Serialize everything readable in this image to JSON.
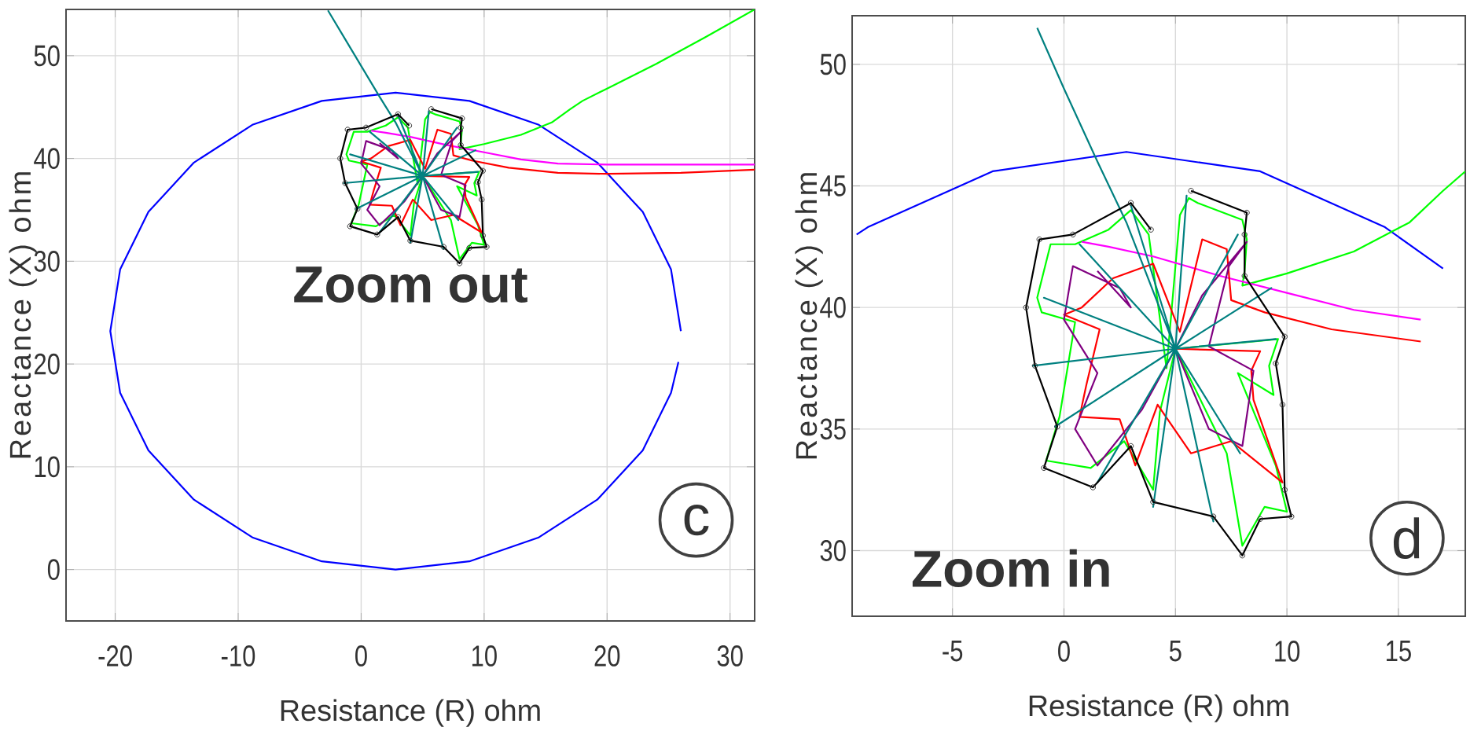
{
  "chart_data": [
    {
      "type": "line",
      "xlabel": "Resistance (R) ohm",
      "ylabel": "Reactance (X) ohm",
      "xlim": [
        -24,
        32
      ],
      "ylim": [
        -5,
        54.5
      ],
      "xticks": [
        -20,
        -10,
        0,
        10,
        20,
        30
      ],
      "yticks": [
        0,
        10,
        20,
        30,
        40,
        50
      ],
      "grid": true,
      "annotations": [
        "Zoom out",
        "c"
      ],
      "series": [
        {
          "color": "#0000ff",
          "x": [
            26.0,
            25.2,
            22.9,
            19.2,
            14.4,
            8.8,
            2.8,
            -3.2,
            -8.8,
            -13.6,
            -17.3,
            -19.6,
            -20.4,
            -19.6,
            -17.3,
            -13.6,
            -8.8,
            -3.2,
            2.8,
            8.8,
            14.4,
            19.2,
            22.9,
            25.2,
            25.8
          ],
          "values": [
            23.2,
            29.2,
            34.8,
            39.6,
            43.3,
            45.6,
            46.4,
            45.6,
            43.3,
            39.6,
            34.8,
            29.2,
            23.2,
            17.2,
            11.6,
            6.8,
            3.1,
            0.8,
            0.0,
            0.8,
            3.1,
            6.8,
            11.6,
            17.2,
            20.2
          ]
        },
        {
          "color": "#00ff00",
          "x": [
            32,
            28,
            24,
            20,
            18,
            17,
            15.5,
            13,
            10,
            8,
            8.1,
            8.2,
            8,
            6,
            5.6,
            5.2,
            4.6,
            3.8,
            3,
            2,
            0.5,
            -0.6,
            -1.2,
            -1,
            0.5,
            -0.2,
            -0.8,
            1.2,
            2.7,
            4,
            4.3,
            5,
            7.3,
            8.0,
            9,
            10,
            9.5,
            7.8,
            9.4,
            9.2,
            9.6,
            8.5,
            5
          ],
          "values": [
            54.5,
            51.8,
            49.2,
            46.8,
            45.6,
            44.8,
            43.5,
            42.3,
            41.4,
            40.9,
            41.5,
            42.8,
            43.6,
            44.3,
            44.5,
            43.8,
            37.5,
            43.0,
            44,
            43.2,
            42.6,
            42.6,
            40.4,
            39.8,
            39.4,
            35.5,
            33.7,
            33.4,
            34.5,
            32.5,
            35.7,
            38.3,
            34.0,
            30.2,
            31.8,
            31.6,
            33.5,
            37.3,
            36.4,
            37.6,
            38.7,
            38.6,
            38.3
          ]
        },
        {
          "color": "#ff00ff",
          "x": [
            32,
            26,
            20,
            16,
            13,
            10,
            7,
            4,
            2,
            0.8
          ],
          "values": [
            39.4,
            39.4,
            39.4,
            39.5,
            39.9,
            40.6,
            41.3,
            42.1,
            42.5,
            42.7
          ]
        },
        {
          "color": "#ff0000",
          "x": [
            32,
            26,
            20,
            16,
            12,
            9,
            7.5,
            7.3,
            6.2,
            5.2,
            4,
            2.2,
            0.8,
            0.0,
            1.6,
            1.0,
            0.7,
            2.5,
            3.2,
            4.2,
            5.7,
            7.5,
            9.8,
            8.5,
            8.4,
            8.8,
            5
          ],
          "values": [
            38.9,
            38.6,
            38.5,
            38.6,
            39.1,
            39.8,
            40.3,
            42.4,
            42.8,
            39,
            41.8,
            41.2,
            40.0,
            39.7,
            39.1,
            36.8,
            35.5,
            35.4,
            33.5,
            36,
            34.0,
            34.5,
            32.8,
            36.2,
            37.4,
            38.2,
            38.3
          ]
        },
        {
          "color": "#800080",
          "x": [
            1.5,
            3,
            2.5,
            0.4,
            0,
            1.5,
            0.5,
            1.5,
            3.5,
            5,
            6.5,
            8,
            8.5,
            6.5,
            7.4,
            8.2,
            6.2,
            5
          ],
          "values": [
            41.5,
            40,
            40.8,
            41.7,
            39.5,
            37.3,
            35,
            33.5,
            35.8,
            38.3,
            35,
            34.3,
            37.4,
            38.4,
            41.7,
            42.7,
            40.5,
            38.3
          ]
        },
        {
          "color": "#008080",
          "x": [
            -2.7,
            -1.5,
            0,
            1.5,
            2.8,
            5,
            -1.4,
            5,
            3,
            5,
            -0.4,
            5,
            1.5,
            5,
            4,
            5,
            6.7,
            5,
            7.9,
            5,
            9.5,
            5,
            9.3,
            5,
            7.8,
            5,
            5.5,
            5,
            0.7,
            5,
            -0.9,
            5
          ],
          "values": [
            54.4,
            52,
            49,
            46,
            43.5,
            38.3,
            37.6,
            38.3,
            44.2,
            38.3,
            35.1,
            38.3,
            32.8,
            38.3,
            31.8,
            38.3,
            31.2,
            38.3,
            34,
            38.3,
            38.7,
            38.3,
            40.8,
            38.3,
            43,
            38.3,
            44.6,
            38.3,
            42.6,
            38.3,
            40.4,
            38.3
          ]
        },
        {
          "color": "#000000",
          "marker": "circle",
          "x": [
            5.7,
            8.2,
            8.1,
            8.1,
            9.9,
            9.5,
            9.8,
            9.9,
            10.2,
            8.8,
            8.0,
            6.7,
            4.0,
            3.0,
            1.3,
            -0.9,
            -0.3,
            -1.3,
            -1.7,
            -1.1,
            0.4,
            3.0,
            3.9
          ],
          "values": [
            44.8,
            43.9,
            43.0,
            41.3,
            38.8,
            37.7,
            36.0,
            32.5,
            31.4,
            31.3,
            29.8,
            31.4,
            32.0,
            34.3,
            32.6,
            33.4,
            35.1,
            37.6,
            40.0,
            42.8,
            43.0,
            44.3,
            43.2
          ]
        }
      ]
    },
    {
      "type": "line",
      "xlabel": "Resistance (R) ohm",
      "ylabel": "Reactance (X) ohm",
      "xlim": [
        -9.5,
        18
      ],
      "ylim": [
        27.3,
        52
      ],
      "xticks": [
        -5,
        0,
        5,
        10,
        15
      ],
      "yticks": [
        30,
        35,
        40,
        45,
        50
      ],
      "grid": true,
      "annotations": [
        "Zoom in",
        "d"
      ],
      "series": [
        {
          "color": "#0000ff",
          "x": [
            17.0,
            14.4,
            8.8,
            2.8,
            -3.2,
            -8.8,
            -9.3
          ],
          "values": [
            41.6,
            43.3,
            45.6,
            46.4,
            45.6,
            43.3,
            43.0
          ]
        },
        {
          "color": "#00ff00",
          "x": [
            18,
            17,
            15.5,
            13,
            10,
            8,
            8.1,
            8.2,
            8,
            6,
            5.6,
            5.2,
            4.6,
            3.8,
            3,
            2,
            0.5,
            -0.6,
            -1.2,
            -1,
            0.5,
            -0.2,
            -0.8,
            1.2,
            2.7,
            4,
            4.3,
            5,
            7.3,
            8.0,
            9,
            10,
            9.5,
            7.8,
            9.4,
            9.2,
            9.6,
            8.5,
            5
          ],
          "values": [
            45.6,
            44.8,
            43.5,
            42.3,
            41.4,
            40.9,
            41.5,
            42.8,
            43.6,
            44.3,
            44.5,
            43.8,
            37.5,
            43.0,
            44,
            43.2,
            42.6,
            42.6,
            40.4,
            39.8,
            39.4,
            35.5,
            33.7,
            33.4,
            34.5,
            32.5,
            35.7,
            38.3,
            34.0,
            30.2,
            31.8,
            31.6,
            33.5,
            37.3,
            36.4,
            37.6,
            38.7,
            38.6,
            38.3
          ]
        },
        {
          "color": "#ff00ff",
          "x": [
            16,
            13,
            10,
            7,
            4,
            2,
            0.8
          ],
          "values": [
            39.5,
            39.9,
            40.6,
            41.3,
            42.1,
            42.5,
            42.7
          ]
        },
        {
          "color": "#ff0000",
          "x": [
            16,
            12,
            9,
            7.5,
            7.3,
            6.2,
            5.2,
            4,
            2.2,
            0.8,
            0.0,
            1.6,
            1.0,
            0.7,
            2.5,
            3.2,
            4.2,
            5.7,
            7.5,
            9.8,
            8.5,
            8.4,
            8.8,
            5
          ],
          "values": [
            38.6,
            39.1,
            39.8,
            40.3,
            42.4,
            42.8,
            39,
            41.8,
            41.2,
            40.0,
            39.7,
            39.1,
            36.8,
            35.5,
            35.4,
            33.5,
            36,
            34.0,
            34.5,
            32.8,
            36.2,
            37.4,
            38.2,
            38.3
          ]
        },
        {
          "color": "#800080",
          "x": [
            1.5,
            3,
            2.5,
            0.4,
            0,
            1.5,
            0.5,
            1.5,
            3.5,
            5,
            6.5,
            8,
            8.5,
            6.5,
            7.4,
            8.2,
            6.2,
            5
          ],
          "values": [
            41.5,
            40,
            40.8,
            41.7,
            39.5,
            37.3,
            35,
            33.5,
            35.8,
            38.3,
            35,
            34.3,
            37.4,
            38.4,
            41.7,
            42.7,
            40.5,
            38.3
          ]
        },
        {
          "color": "#008080",
          "x": [
            -1.2,
            0,
            1.5,
            2.8,
            5,
            -1.4,
            5,
            3,
            5,
            -0.4,
            5,
            1.5,
            5,
            4,
            5,
            6.7,
            5,
            7.9,
            5,
            9.5,
            5,
            9.3,
            5,
            7.8,
            5,
            5.5,
            5,
            0.7,
            5,
            -0.9,
            5
          ],
          "values": [
            51.5,
            49,
            46,
            43.5,
            38.3,
            37.6,
            38.3,
            44.2,
            38.3,
            35.1,
            38.3,
            32.8,
            38.3,
            31.8,
            38.3,
            31.2,
            38.3,
            34,
            38.3,
            38.7,
            38.3,
            40.8,
            38.3,
            43,
            38.3,
            44.6,
            38.3,
            42.6,
            38.3,
            40.4,
            38.3
          ]
        },
        {
          "color": "#000000",
          "marker": "circle",
          "x": [
            5.7,
            8.2,
            8.1,
            8.1,
            9.9,
            9.5,
            9.8,
            9.9,
            10.2,
            8.8,
            8.0,
            6.7,
            4.0,
            3.0,
            1.3,
            -0.9,
            -0.3,
            -1.3,
            -1.7,
            -1.1,
            0.4,
            3.0,
            3.9
          ],
          "values": [
            44.8,
            43.9,
            43.0,
            41.3,
            38.8,
            37.7,
            36.0,
            32.5,
            31.4,
            31.3,
            29.8,
            31.4,
            32.0,
            34.3,
            32.6,
            33.4,
            35.1,
            37.6,
            40.0,
            42.8,
            43.0,
            44.3,
            43.2
          ]
        }
      ]
    }
  ]
}
